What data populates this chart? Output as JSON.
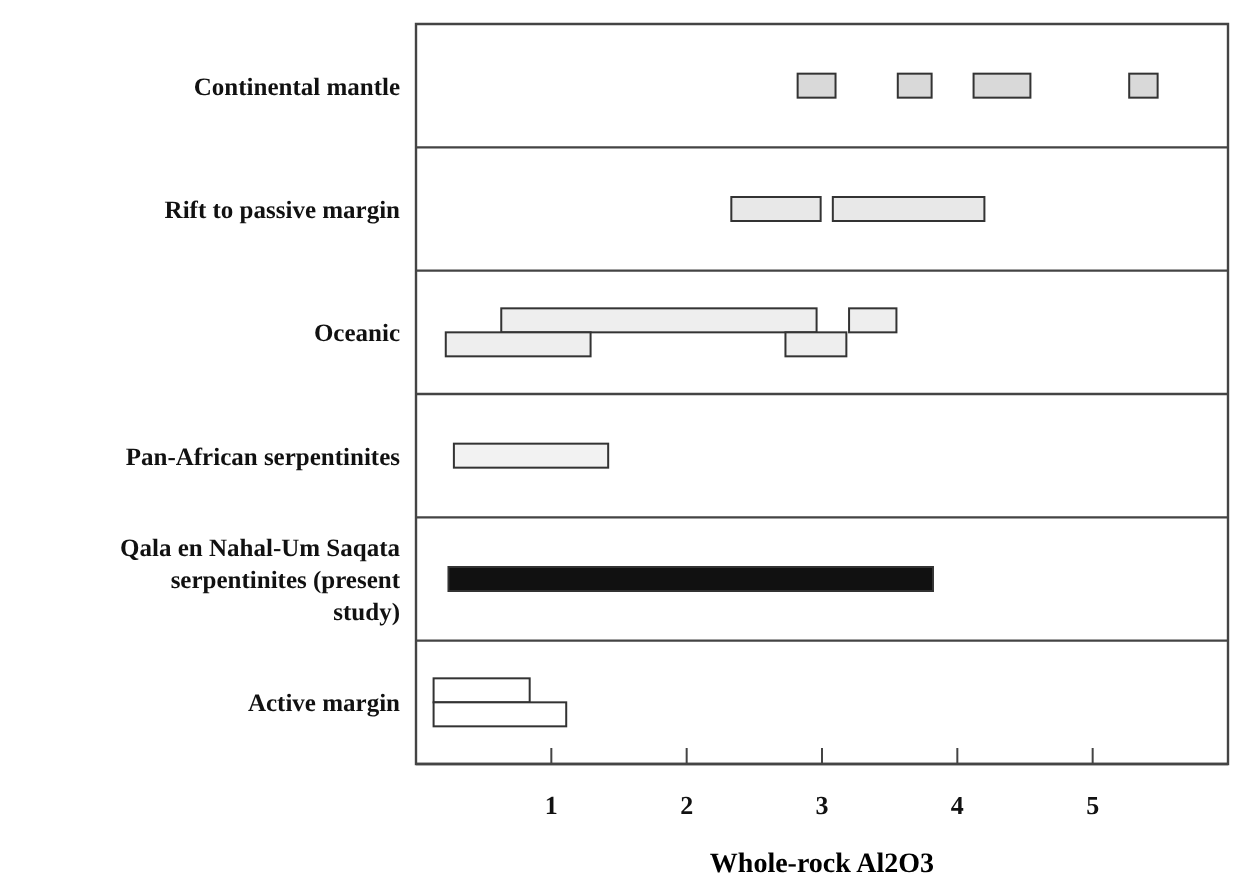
{
  "chart_data": {
    "type": "bar",
    "orientation": "horizontal",
    "xlabel": "Whole-rock Al2O3",
    "xlim": [
      0,
      6
    ],
    "xticks": [
      1,
      2,
      3,
      4,
      5
    ],
    "categories": [
      "Continental mantle",
      "Rift to passive margin",
      "Oceanic",
      "Pan-African serpentinites",
      "Qala en Nahal-Um Saqata serpentinites (present study)",
      "Active margin"
    ],
    "series": [
      {
        "base": [
          2.82,
          2.33,
          0.63,
          0.28,
          0.24,
          0.13
        ],
        "values": [
          0.28,
          0.66,
          2.33,
          1.14,
          3.58,
          0.71
        ],
        "colors": [
          "#d9d9d9",
          "#e8e8e8",
          "#eeeeee",
          "#f2f2f2",
          "#111111",
          "#ffffff"
        ]
      },
      {
        "base": [
          3.56,
          3.08,
          3.2,
          null,
          null,
          0.13
        ],
        "values": [
          0.25,
          1.12,
          0.35,
          null,
          null,
          0.98
        ],
        "colors": [
          "#d9d9d9",
          "#e8e8e8",
          "#eeeeee",
          null,
          null,
          "#ffffff"
        ]
      },
      {
        "base": [
          4.12,
          null,
          0.22,
          null,
          null,
          null
        ],
        "values": [
          0.42,
          null,
          1.07,
          null,
          null,
          null
        ],
        "colors": [
          "#d9d9d9",
          null,
          "#eeeeee",
          null,
          null,
          null
        ]
      },
      {
        "base": [
          5.27,
          null,
          2.73,
          null,
          null,
          null
        ],
        "values": [
          0.21,
          null,
          0.45,
          null,
          null,
          null
        ],
        "colors": [
          "#d9d9d9",
          null,
          "#eeeeee",
          null,
          null,
          null
        ]
      }
    ]
  }
}
